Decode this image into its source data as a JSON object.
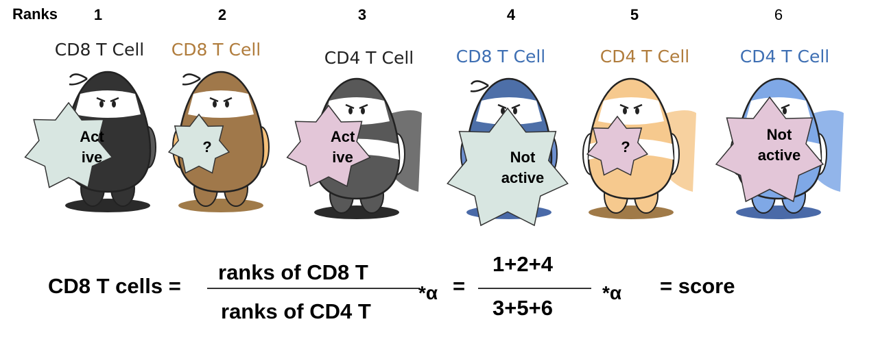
{
  "header": {
    "ranks_label": "Ranks"
  },
  "cells": [
    {
      "rank": "1",
      "title": "CD8 T Cell",
      "badge_lines": [
        "Act",
        "ive"
      ],
      "body": "#333333",
      "light": "#5a5a5a",
      "shadow": "#2a2a2a",
      "title_color": "#222222",
      "badge_fill": "#d8e6e1"
    },
    {
      "rank": "2",
      "title": "CD8 T Cell",
      "badge_lines": [
        "?"
      ],
      "body": "#a0784a",
      "light": "#f5c07a",
      "shadow": "#a07a48",
      "title_color": "#b07c3c",
      "badge_fill": "#d8e6e1"
    },
    {
      "rank": "3",
      "title": "CD4 T Cell",
      "badge_lines": [
        "Act",
        "ive"
      ],
      "body": "#585858",
      "light": "#ffffff",
      "shadow": "#2a2a2a",
      "title_color": "#222222",
      "badge_fill": "#e3c6d8"
    },
    {
      "rank": "4",
      "title": "CD8 T Cell",
      "badge_lines": [
        "Not",
        "active"
      ],
      "body": "#4d6fa8",
      "light": "#6d8fcf",
      "shadow": "#4a6aa8",
      "title_color": "#3e6fb3",
      "badge_fill": "#d8e6e1"
    },
    {
      "rank": "5",
      "title": "CD4 T Cell",
      "badge_lines": [
        "?"
      ],
      "body": "#f6c98e",
      "light": "#ffffff",
      "shadow": "#a07a48",
      "title_color": "#b07c3c",
      "badge_fill": "#e3c6d8"
    },
    {
      "rank": "6",
      "title": "CD4 T Cell",
      "badge_lines": [
        "Not",
        "active"
      ],
      "body": "#7fa8e6",
      "light": "#ffffff",
      "shadow": "#4a6aa8",
      "title_color": "#3e6fb3",
      "badge_fill": "#e3c6d8"
    }
  ],
  "formula": {
    "lhs": "CD8 T cells =",
    "numerator": "ranks of CD8 T",
    "denominator": "ranks of CD4 T",
    "alpha1": "*α",
    "eq": "=",
    "num_values": "1+2+4",
    "den_values": "3+5+6",
    "alpha2": "*α",
    "result": "= score"
  }
}
